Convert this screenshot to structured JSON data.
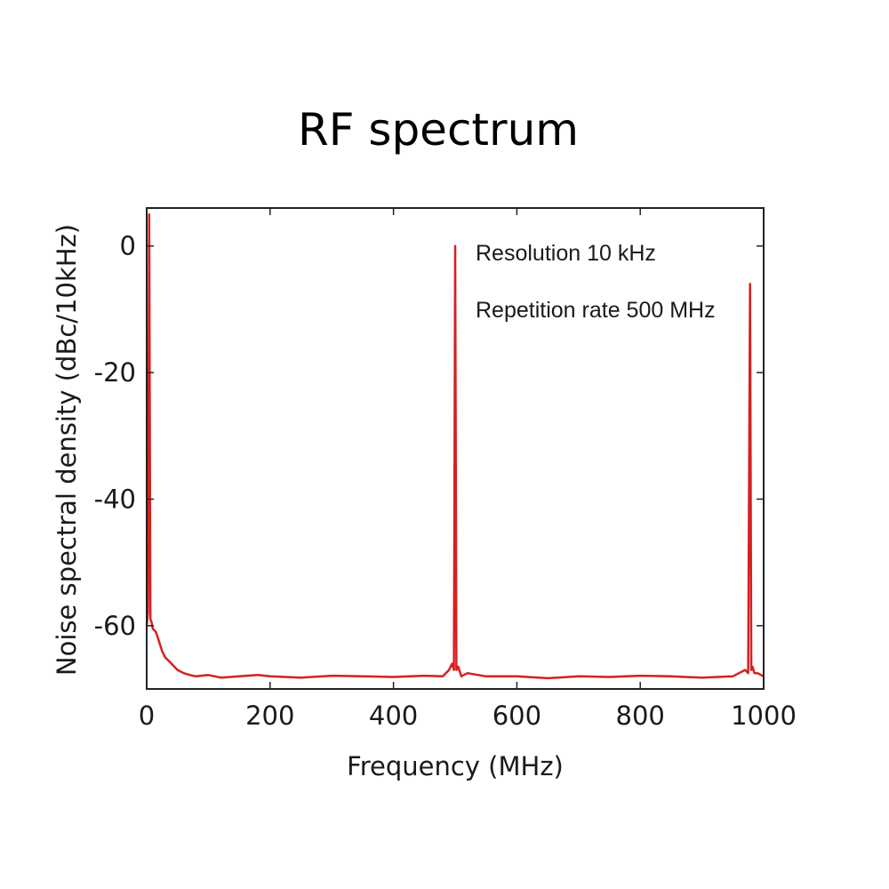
{
  "chart_data": {
    "type": "line",
    "title": "RF spectrum",
    "xlabel": "Frequency (MHz)",
    "ylabel": "Noise spectral density (dBc/10kHz)",
    "xlim": [
      0,
      1000
    ],
    "ylim": [
      -70,
      6
    ],
    "xticks": [
      0,
      200,
      400,
      600,
      800,
      1000
    ],
    "yticks": [
      0,
      -20,
      -40,
      -60
    ],
    "grid": false,
    "annotations": [
      "Resolution 10 kHz",
      "Repetition rate 500 MHz"
    ],
    "series": [
      {
        "color": "#d62020",
        "x": [
          0,
          2,
          4,
          6,
          8,
          10,
          15,
          20,
          25,
          30,
          40,
          50,
          60,
          70,
          80,
          100,
          120,
          150,
          180,
          200,
          250,
          300,
          350,
          400,
          450,
          480,
          490,
          495,
          498,
          500,
          502,
          505,
          510,
          520,
          550,
          600,
          650,
          700,
          750,
          800,
          850,
          900,
          950,
          960,
          970,
          975,
          978,
          980,
          982,
          985,
          990,
          1000
        ],
        "y": [
          -60,
          -58,
          5,
          -59,
          -59.5,
          -60.5,
          -61,
          -62.5,
          -64,
          -65,
          -66,
          -67,
          -67.5,
          -67.8,
          -68,
          -67.8,
          -68.2,
          -68,
          -67.8,
          -68,
          -68.2,
          -67.9,
          -68,
          -68.1,
          -67.9,
          -68,
          -67,
          -66,
          -67,
          0,
          -67,
          -66.5,
          -68,
          -67.5,
          -68,
          -68,
          -68.3,
          -68,
          -68.1,
          -67.9,
          -68,
          -68.2,
          -68,
          -67.5,
          -67,
          -67.5,
          -6,
          -67,
          -66.5,
          -67.5,
          -67.5,
          -68
        ]
      }
    ]
  }
}
